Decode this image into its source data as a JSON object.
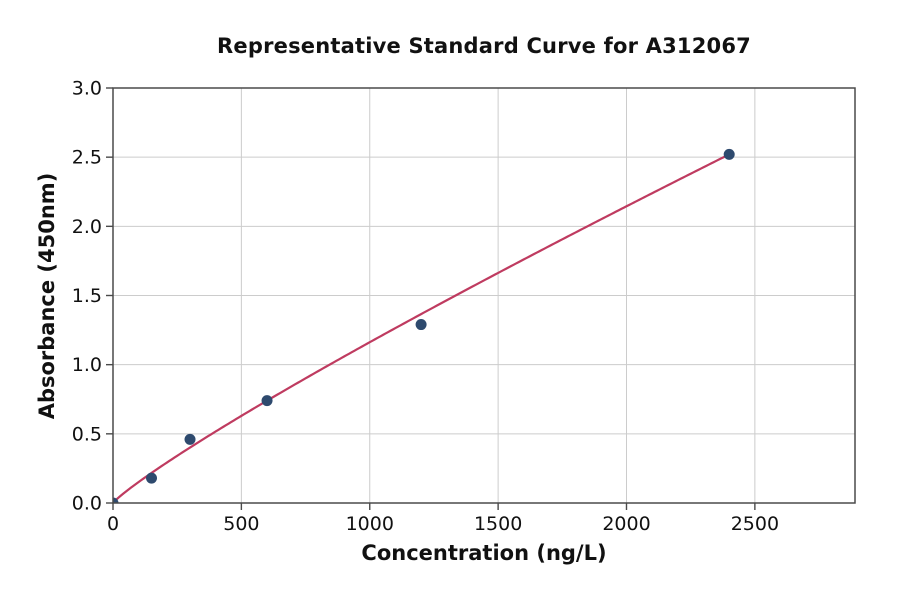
{
  "figure": {
    "title": "Representative Standard Curve for A312067",
    "xlabel": "Concentration (ng/L)",
    "ylabel": "Absorbance (450nm)"
  },
  "chart_data": {
    "type": "scatter",
    "title": "Representative Standard Curve for A312067",
    "xlabel": "Concentration (ng/L)",
    "ylabel": "Absorbance (450nm)",
    "points": [
      {
        "x": 0,
        "y": 0.0
      },
      {
        "x": 150,
        "y": 0.18
      },
      {
        "x": 300,
        "y": 0.46
      },
      {
        "x": 600,
        "y": 0.74
      },
      {
        "x": 1200,
        "y": 1.29
      },
      {
        "x": 2400,
        "y": 2.52
      }
    ],
    "fit_curve": {
      "model": "power",
      "equation": "y = a * x^b",
      "a": 0.00259,
      "b": 0.884,
      "x_range": [
        0,
        2400
      ]
    },
    "xlim": [
      0,
      2890
    ],
    "ylim": [
      0,
      3.0
    ],
    "x_ticks": [
      0,
      500,
      1000,
      1500,
      2000,
      2500
    ],
    "y_ticks": [
      0.0,
      0.5,
      1.0,
      1.5,
      2.0,
      2.5,
      3.0
    ],
    "grid": true,
    "legend": false,
    "colors": {
      "curve": "#bf3b60",
      "points": "#2e4a6e",
      "grid": "#cccccc",
      "spine": "#4a4a4a",
      "text": "#111111",
      "background": "#ffffff"
    }
  }
}
